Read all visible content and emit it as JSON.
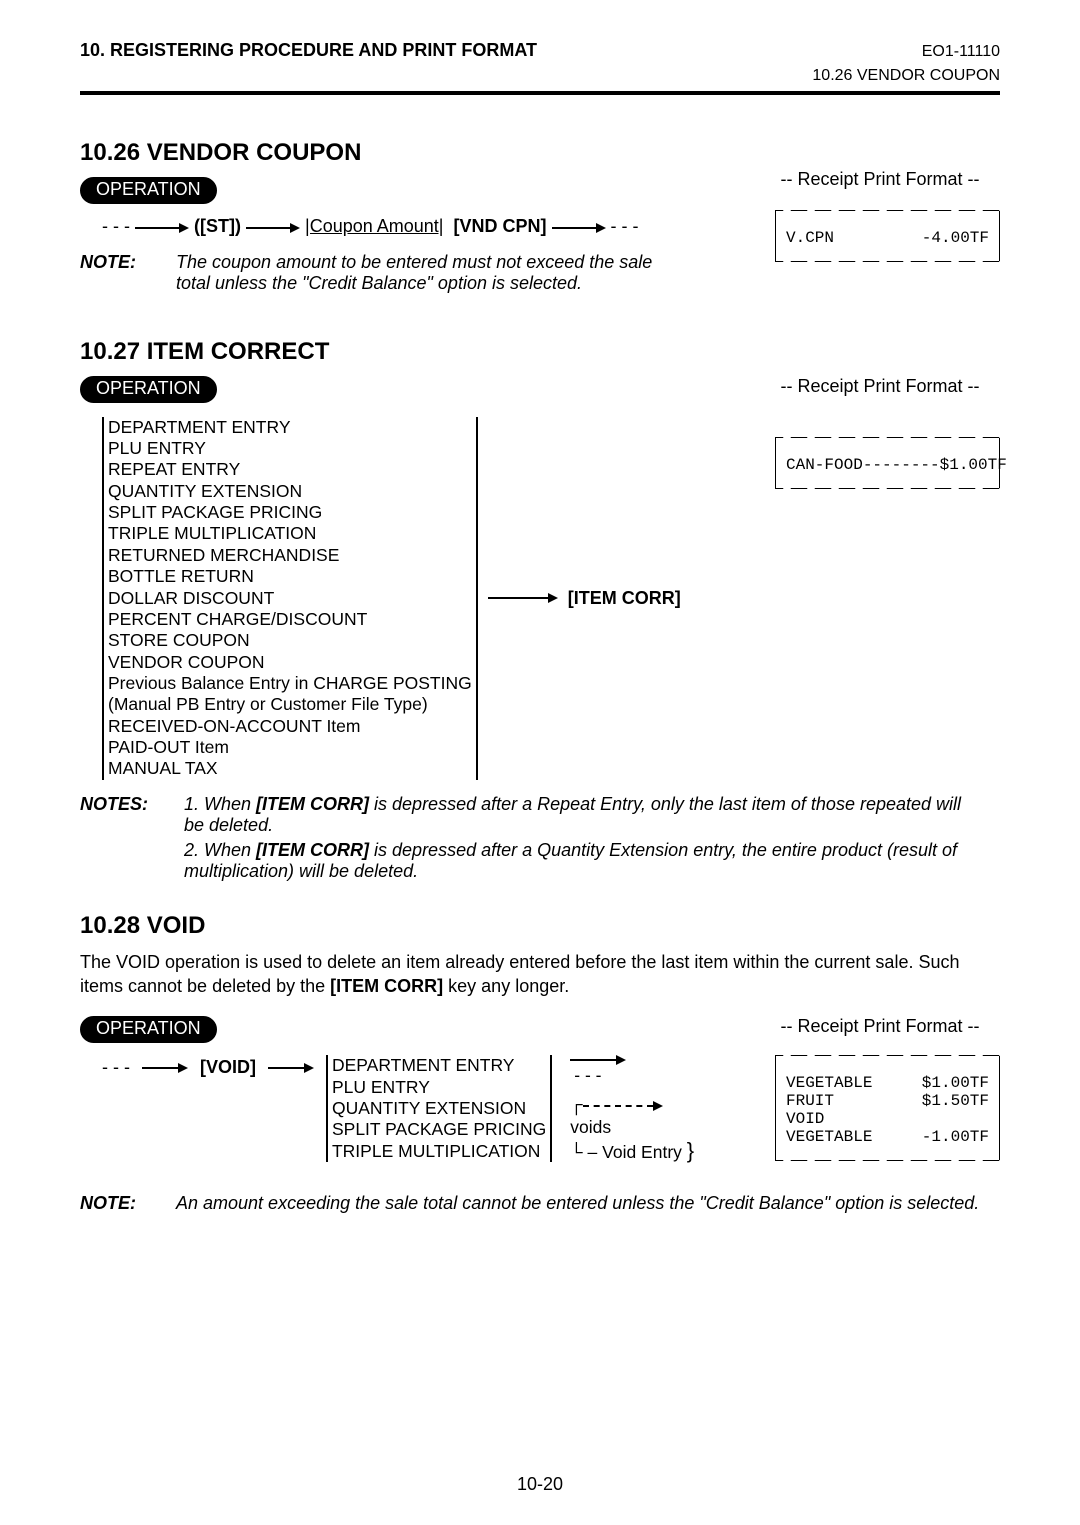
{
  "header": {
    "left": "10. REGISTERING PROCEDURE AND PRINT FORMAT",
    "code": "EO1-11110",
    "sub": "10.26  VENDOR COUPON"
  },
  "s26": {
    "title": "10.26  VENDOR COUPON",
    "op": "OPERATION",
    "rpf": "-- Receipt Print Format --",
    "flow": {
      "pre": "- - -",
      "st": "([ST])",
      "coupon": "|Coupon Amount|",
      "vnd": "[VND CPN]",
      "post": "- - -"
    },
    "note_label": "NOTE:",
    "note_body": "The coupon amount to be entered must not exceed the sale total unless the \"Credit Balance\" option is selected.",
    "receipt": {
      "l1a": "V.CPN",
      "l1b": "-4.00TF"
    }
  },
  "s27": {
    "title": "10.27  ITEM CORRECT",
    "op": "OPERATION",
    "rpf": "-- Receipt Print Format --",
    "entries": [
      "DEPARTMENT ENTRY",
      "PLU ENTRY",
      "REPEAT ENTRY",
      "QUANTITY EXTENSION",
      "SPLIT PACKAGE PRICING",
      "TRIPLE MULTIPLICATION",
      "RETURNED MERCHANDISE",
      "BOTTLE RETURN",
      "DOLLAR DISCOUNT",
      "PERCENT CHARGE/DISCOUNT",
      "STORE COUPON",
      "VENDOR COUPON",
      "Previous Balance Entry in CHARGE POSTING",
      "(Manual PB Entry or Customer File Type)",
      "RECEIVED-ON-ACCOUNT Item",
      "PAID-OUT Item",
      "MANUAL TAX"
    ],
    "key": "[ITEM CORR]",
    "receipt": {
      "l1": "CAN-FOOD--------$1.00TF"
    },
    "notes_label": "NOTES:",
    "note1_pre": "1.  When ",
    "note1_b": "[ITEM CORR]",
    "note1_post": " is depressed after a Repeat Entry, only the last item of those repeated will be deleted.",
    "note2_pre": "2.  When ",
    "note2_b": "[ITEM CORR]",
    "note2_post": " is depressed after a Quantity Extension entry, the entire product (result of multiplication) will be deleted."
  },
  "s28": {
    "title": "10.28  VOID",
    "body_pre": "The VOID operation is used to delete an item already entered before the last item within the current sale.  Such items cannot be deleted by the ",
    "body_b": "[ITEM CORR]",
    "body_post": " key any longer.",
    "op": "OPERATION",
    "rpf": "-- Receipt Print Format --",
    "pre": "- - -",
    "void": "[VOID]",
    "entries": [
      "DEPARTMENT ENTRY",
      "PLU ENTRY",
      "QUANTITY EXTENSION",
      "SPLIT PACKAGE PRICING",
      "TRIPLE MULTIPLICATION"
    ],
    "arrow_post": "- - -",
    "voids": "voids",
    "void_entry": "– Void Entry",
    "receipt": {
      "r1a": "VEGETABLE",
      "r1b": "$1.00TF",
      "r2a": "FRUIT",
      "r2b": "$1.50TF",
      "r3a": "VOID",
      "r3b": "",
      "r4a": "VEGETABLE",
      "r4b": "-1.00TF"
    },
    "note_label": "NOTE:",
    "note_body": "An amount exceeding the sale total cannot be entered unless the \"Credit Balance\" option is selected."
  },
  "pagenum": "10-20"
}
